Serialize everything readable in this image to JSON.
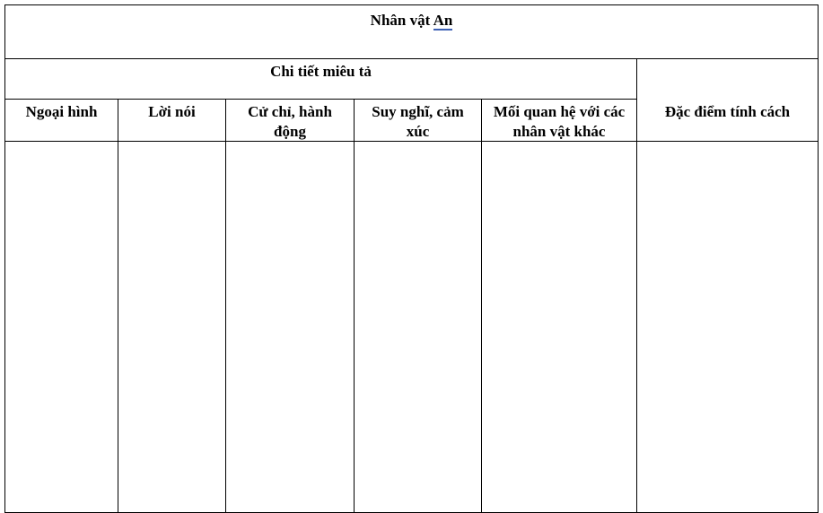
{
  "title": {
    "prefix": "Nhân vật ",
    "name": "An"
  },
  "group_header": "Chi tiết miêu tả",
  "side_header": "Đặc điểm tính cách",
  "columns": [
    "Ngoại hình",
    "Lời nói",
    "Cử chỉ, hành động",
    "Suy nghĩ, cảm xúc",
    "Mối quan hệ với các nhân vật khác"
  ],
  "colors": {
    "spellcheck_underline": "#3b5fb3"
  }
}
